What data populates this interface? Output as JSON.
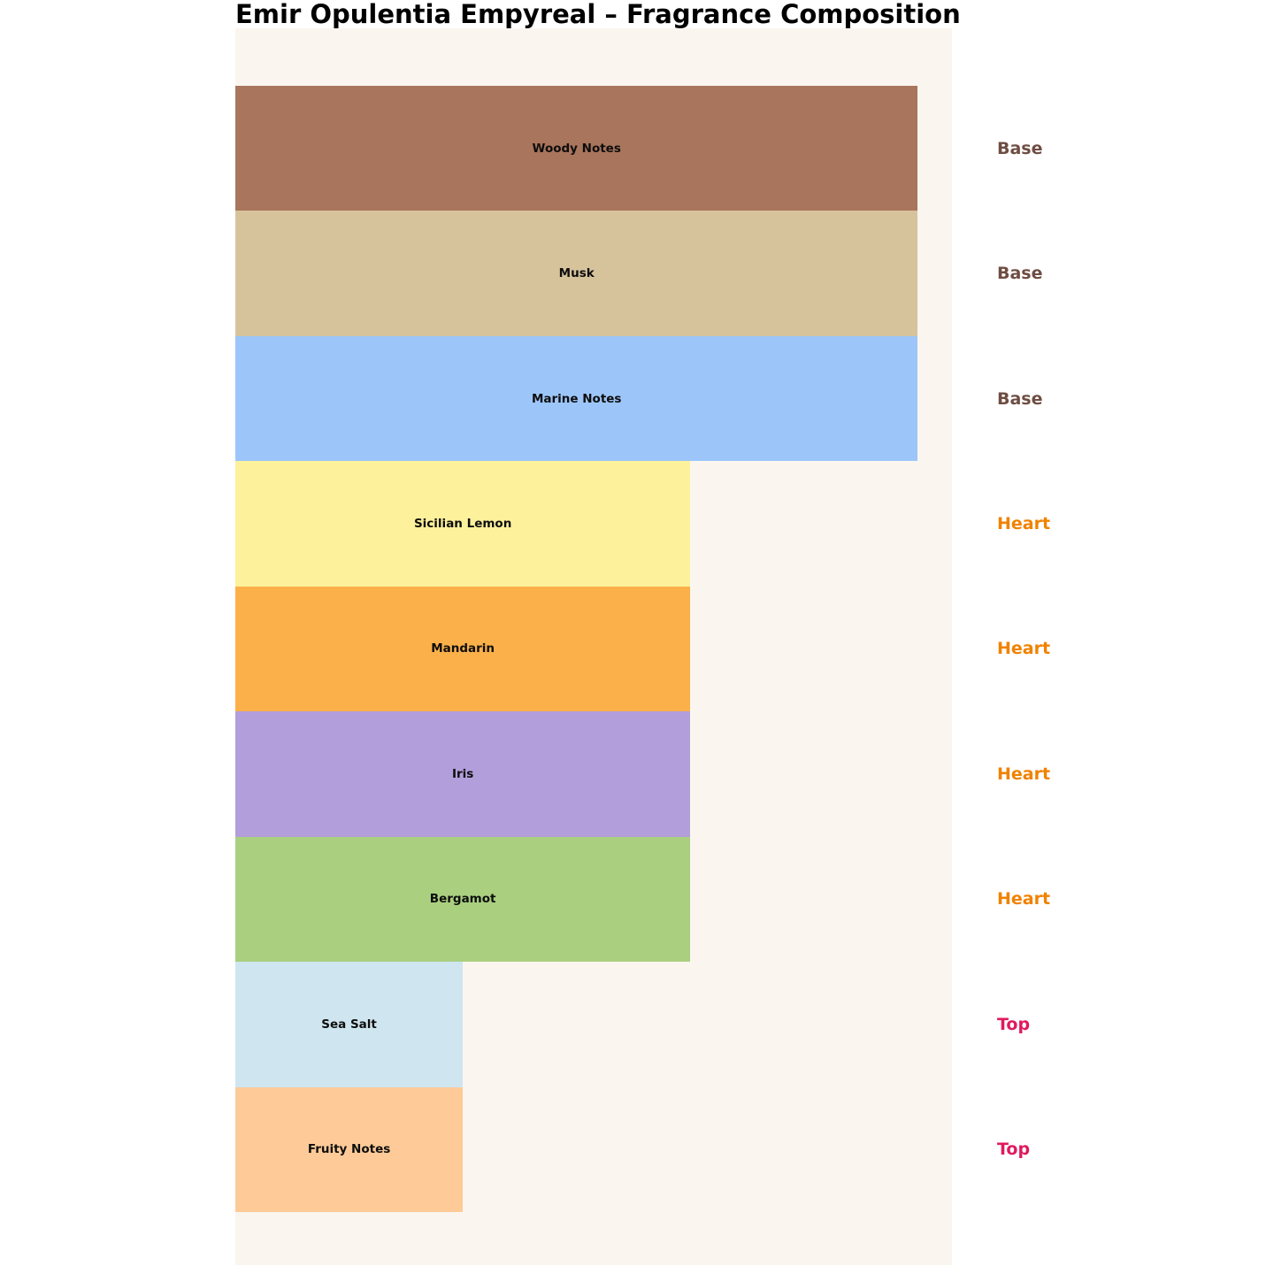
{
  "page": {
    "background": "#ffffff"
  },
  "chart_data": {
    "type": "bar",
    "orientation": "horizontal",
    "title": "Emir Opulentia Empyreal – Fragrance Composition",
    "plot_background": "#faf6ef",
    "xlim": [
      0,
      3.15
    ],
    "grid": false,
    "legend": "none",
    "axes_hidden": true,
    "group_label_position": "right-of-plot",
    "categories": [
      "Woody Notes",
      "Musk",
      "Marine Notes",
      "Sicilian Lemon",
      "Mandarin",
      "Iris",
      "Bergamot",
      "Sea Salt",
      "Fruity Notes"
    ],
    "values": [
      3,
      3,
      3,
      2,
      2,
      2,
      2,
      1,
      1
    ],
    "groups": [
      "Base",
      "Base",
      "Base",
      "Heart",
      "Heart",
      "Heart",
      "Heart",
      "Top",
      "Top"
    ],
    "bars": [
      {
        "label": "Woody Notes",
        "group": "Base",
        "value": 3,
        "color": "#a9755c"
      },
      {
        "label": "Musk",
        "group": "Base",
        "value": 3,
        "color": "#d6c39c"
      },
      {
        "label": "Marine Notes",
        "group": "Base",
        "value": 3,
        "color": "#9cc6fa"
      },
      {
        "label": "Sicilian Lemon",
        "group": "Heart",
        "value": 2,
        "color": "#fdf19c"
      },
      {
        "label": "Mandarin",
        "group": "Heart",
        "value": 2,
        "color": "#fbb04a"
      },
      {
        "label": "Iris",
        "group": "Heart",
        "value": 2,
        "color": "#b29edb"
      },
      {
        "label": "Bergamot",
        "group": "Heart",
        "value": 2,
        "color": "#a9cf7f"
      },
      {
        "label": "Sea Salt",
        "group": "Top",
        "value": 1,
        "color": "#cfe6f1"
      },
      {
        "label": "Fruity Notes",
        "group": "Top",
        "value": 1,
        "color": "#feca97"
      }
    ],
    "group_colors": {
      "Base": "#6e4d42",
      "Heart": "#f08200",
      "Top": "#e01a5f"
    },
    "bar_label_color": "#0d0d0d"
  }
}
